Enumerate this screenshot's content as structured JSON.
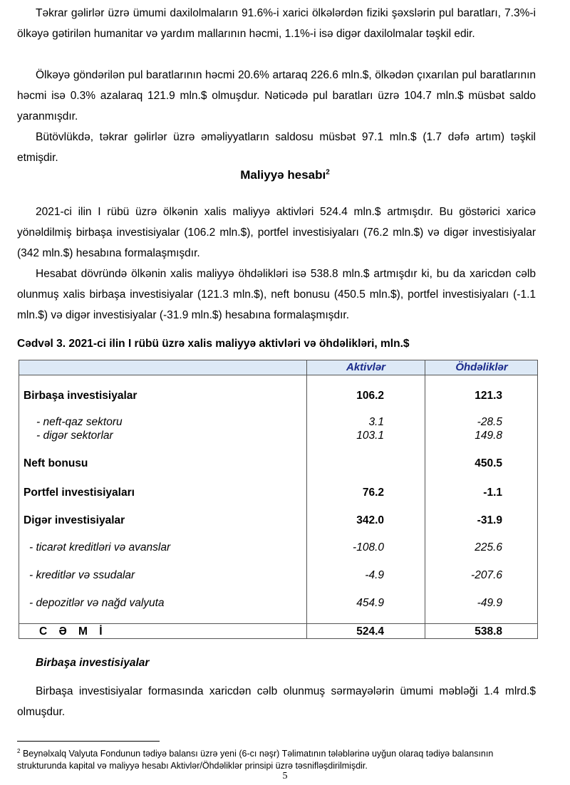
{
  "paragraphs": [
    "Təkrar gəlirlər üzrə ümumi daxilolmaların 91.6%-i xarici ölkələrdən fiziki şəxslərin pul baratları, 7.3%-i ölkəyə gətirilən humanitar və yardım mallarının həcmi, 1.1%-i isə digər daxilolmalar təşkil edir.",
    "Ölkəyə göndərilən pul baratlarının həcmi 20.6% artaraq 226.6 mln.$, ölkədən çıxarılan pul baratlarının həcmi isə 0.3% azalaraq 121.9 mln.$ olmuşdur. Nəticədə pul baratları üzrə 104.7 mln.$ müsbət saldo yaranmışdır.",
    "Bütövlükdə, təkrar gəlirlər üzrə əməliyyatların saldosu müsbət 97.1 mln.$ (1.7 dəfə artım) təşkil etmişdir.",
    "2021-ci ilin I rübü üzrə ölkənin xalis maliyyə aktivləri 524.4 mln.$ artmışdır. Bu göstərici xaricə yönəldilmiş birbaşa investisiyalar (106.2 mln.$), portfel investisiyaları (76.2 mln.$) və digər investisiyalar (342 mln.$) hesabına formalaşmışdır.",
    "Hesabat dövründə ölkənin xalis maliyyə öhdəlikləri isə 538.8 mln.$ artmışdır ki, bu da xaricdən cəlb olunmuş xalis birbaşa investisiyalar (121.3 mln.$), neft bonusu (450.5 mln.$), portfel investisiyaları (-1.1 mln.$) və digər investisiyalar (-31.9 mln.$) hesabına formalaşmışdır.",
    "Birbaşa investisiyalar formasında xaricdən cəlb olunmuş sərmayələrin ümumi məbləği 1.4 mlrd.$ olmuşdur."
  ],
  "heading": "Maliyyə hesabı",
  "heading_sup": "2",
  "table": {
    "caption": "Cədvəl 3. 2021-ci ilin I rübü üzrə xalis maliyyə aktivləri və öhdəlikləri, mln.$",
    "columns": [
      "Aktivlər",
      "Öhdəliklər"
    ],
    "rows": [
      {
        "label": "Birbaşa investisiyalar",
        "a": "106.2",
        "o": "121.3"
      },
      {
        "label": "- neft-qaz sektoru",
        "a": "3.1",
        "o": "-28.5"
      },
      {
        "label": "- digər sektorlar",
        "a": "103.1",
        "o": "149.8"
      },
      {
        "label": "Neft bonusu",
        "a": "",
        "o": "450.5"
      },
      {
        "label": "Portfel investisiyaları",
        "a": "76.2",
        "o": "-1.1"
      },
      {
        "label": "Digər investisiyalar",
        "a": "342.0",
        "o": "-31.9"
      },
      {
        "label": "- ticarət kreditləri və avanslar",
        "a": "-108.0",
        "o": "225.6"
      },
      {
        "label": "- kreditlər və ssudalar",
        "a": "-4.9",
        "o": "-207.6"
      },
      {
        "label": "- depozitlər və nağd valyuta",
        "a": "454.9",
        "o": "-49.9"
      }
    ],
    "total": {
      "label": "C Ə M İ",
      "a": "524.4",
      "o": "538.8"
    }
  },
  "subheading": "Birbaşa investisiyalar",
  "footnote": {
    "mark": "2",
    "text": "Beynəlxalq Valyuta Fondunun tədiyə balansı üzrə yeni (6-cı nəşr) Təlimatının tələblərinə uyğun olaraq tədiyə balansının strukturunda kapital və maliyyə hesabı Aktivlər/Öhdəliklər prinsipi üzrə təsnifləşdirilmişdir."
  },
  "page_number": "5"
}
